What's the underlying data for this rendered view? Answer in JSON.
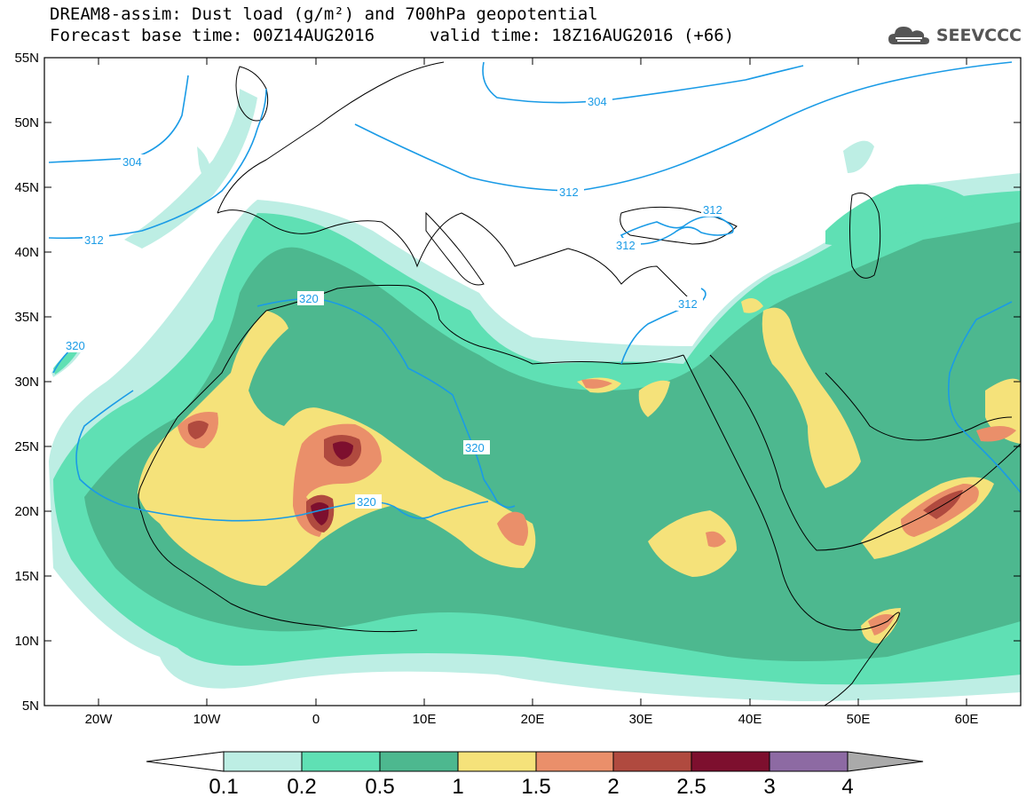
{
  "title": {
    "line1": "DREAM8-assim: Dust load (g/m²) and 700hPa geopotential",
    "line2_left": "Forecast base time: 00Z14AUG2016",
    "line2_right": "valid time: 18Z16AUG2016 (+66)"
  },
  "logo": {
    "text": "SEEVCCC",
    "icon": "cloud-logo-icon"
  },
  "map": {
    "lon_range": [
      -25,
      65
    ],
    "lat_range": [
      5,
      55
    ],
    "lon_ticks": [
      "20W",
      "10W",
      "0",
      "10E",
      "20E",
      "30E",
      "40E",
      "50E",
      "60E"
    ],
    "lat_ticks": [
      "55N",
      "50N",
      "45N",
      "40N",
      "35N",
      "30N",
      "25N",
      "20N",
      "15N",
      "10N",
      "5N"
    ],
    "contour_color": "#1a9be6",
    "contour_labels": [
      "304",
      "304",
      "312",
      "312",
      "312",
      "312",
      "312",
      "320",
      "320",
      "320",
      "320"
    ]
  },
  "colorbar": {
    "labels": [
      "0.1",
      "0.2",
      "0.5",
      "1",
      "1.5",
      "2",
      "2.5",
      "3",
      "4"
    ],
    "colors": [
      "#ffffff",
      "#bdeee4",
      "#5fe0b4",
      "#4db88f",
      "#f5e27a",
      "#ea8f6a",
      "#b04a3f",
      "#7d0f2e",
      "#8d6aa3",
      "#aaaaaa"
    ]
  }
}
